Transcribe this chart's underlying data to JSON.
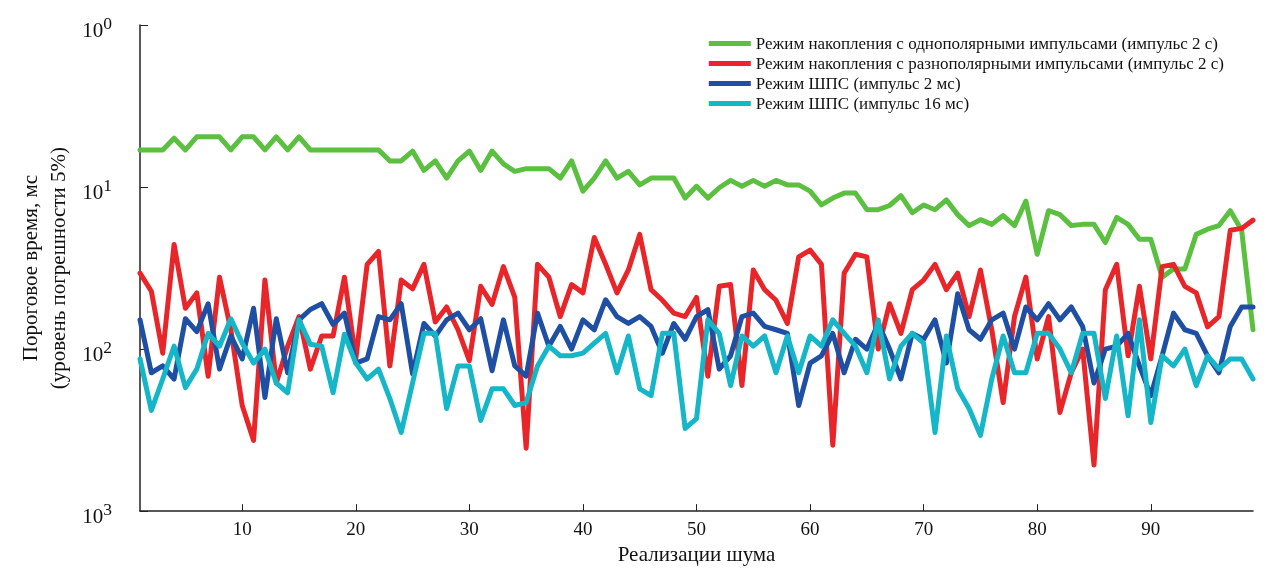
{
  "chart_data": {
    "type": "line",
    "xlabel": "Реализации шума",
    "ylabel": "Пороговое время, мс\n(уровень погрешности 5%)",
    "x": [
      1,
      2,
      3,
      4,
      5,
      6,
      7,
      8,
      9,
      10,
      11,
      12,
      13,
      14,
      15,
      16,
      17,
      18,
      19,
      20,
      21,
      22,
      23,
      24,
      25,
      26,
      27,
      28,
      29,
      30,
      31,
      32,
      33,
      34,
      35,
      36,
      37,
      38,
      39,
      40,
      41,
      42,
      43,
      44,
      45,
      46,
      47,
      48,
      49,
      50,
      51,
      52,
      53,
      54,
      55,
      56,
      57,
      58,
      59,
      60,
      61,
      62,
      63,
      64,
      65,
      66,
      67,
      68,
      69,
      70,
      71,
      72,
      73,
      74,
      75,
      76,
      77,
      78,
      79,
      80,
      81,
      82,
      83,
      84,
      85,
      86,
      87,
      88,
      89,
      90,
      91,
      92,
      93,
      94,
      95,
      96,
      97,
      98,
      99
    ],
    "xlim": [
      1,
      99
    ],
    "xticks": [
      10,
      20,
      30,
      40,
      50,
      60,
      70,
      80,
      90
    ],
    "log": "y",
    "ylim": [
      1000,
      1
    ],
    "yticks": [
      {
        "value": 1,
        "label": "10$^{0}$"
      },
      {
        "value": 10,
        "label": "10$^{1}$"
      },
      {
        "value": 100,
        "label": "10$^{2}$"
      },
      {
        "value": 1000,
        "label": "10$^{3}$"
      }
    ],
    "legend": "top right",
    "series": [
      {
        "name": "Режим накопления с однополярными импульсами (импульс 2 с)",
        "color": "#5bbf3f",
        "values": [
          5.9,
          5.9,
          5.9,
          5.0,
          5.9,
          4.9,
          4.9,
          4.9,
          5.9,
          4.9,
          4.9,
          5.9,
          4.9,
          5.9,
          4.9,
          5.9,
          5.9,
          5.9,
          5.9,
          5.9,
          5.9,
          5.9,
          6.9,
          6.9,
          6.0,
          7.9,
          6.9,
          8.8,
          6.9,
          6.0,
          7.9,
          6.0,
          7.2,
          8.0,
          7.7,
          7.7,
          7.7,
          8.8,
          6.9,
          10.6,
          8.8,
          6.9,
          8.8,
          8.0,
          9.7,
          8.8,
          8.8,
          8.8,
          11.7,
          9.9,
          11.7,
          10.1,
          9.1,
          9.9,
          9.1,
          9.9,
          9.1,
          9.7,
          9.7,
          10.6,
          12.9,
          11.7,
          10.9,
          10.9,
          13.8,
          13.8,
          13.0,
          11.3,
          14.4,
          12.9,
          13.8,
          12.0,
          14.8,
          17.3,
          15.9,
          17.0,
          15.0,
          17.3,
          12.2,
          26,
          14.0,
          14.8,
          17.3,
          17.0,
          17.0,
          22,
          15.4,
          17.0,
          21,
          21,
          36,
          32,
          32,
          19.6,
          18.2,
          17.3,
          14.0,
          18.5,
          76
        ]
      },
      {
        "name": "Режим накопления с разнополярными импульсами (импульс 2 с)",
        "color": "#e8262a",
        "values": [
          34,
          44,
          106,
          22.6,
          56,
          45,
          147,
          36,
          76,
          223,
          366,
          37.5,
          162,
          96,
          63,
          133,
          83,
          83,
          36,
          115,
          30,
          25,
          127,
          37.5,
          42.5,
          30,
          68,
          55,
          76,
          118,
          41,
          53,
          31,
          48,
          409,
          30,
          36,
          63,
          40,
          45,
          20.5,
          30,
          45,
          32.5,
          19.6,
          43,
          50,
          60,
          63,
          48,
          147,
          41,
          40,
          168,
          32.5,
          43,
          50,
          69.5,
          27,
          24.5,
          30,
          392,
          34,
          26,
          27,
          100,
          52.5,
          80,
          43,
          37.5,
          30,
          43,
          34,
          63,
          32.5,
          76,
          214,
          63,
          36,
          115,
          63,
          246,
          140,
          100,
          519,
          43,
          30,
          110,
          41,
          115,
          31,
          30,
          41,
          45,
          73,
          63,
          18.5,
          18,
          16
        ]
      },
      {
        "name": "Режим ШПС (импульс 2 мс)",
        "color": "#1f4fa3",
        "values": [
          66,
          140,
          127,
          153,
          65,
          78,
          52.5,
          133,
          83,
          115,
          56,
          199,
          65,
          140,
          66,
          57,
          52.5,
          70.5,
          60,
          122,
          115,
          63,
          66,
          52.5,
          142,
          69.5,
          83,
          66,
          60,
          76,
          65,
          136,
          66,
          127,
          147,
          60,
          96,
          72.5,
          100,
          66,
          76,
          49.6,
          63,
          69.5,
          63,
          72.5,
          106,
          69.5,
          87,
          63,
          57,
          133,
          110,
          63,
          60,
          72.5,
          76,
          80,
          223,
          122,
          110,
          80,
          140,
          87,
          100,
          69.5,
          100,
          153,
          80,
          87,
          66,
          122,
          45.5,
          76,
          87,
          66,
          60,
          100,
          55,
          66,
          52.5,
          66,
          55,
          72.5,
          162,
          100,
          96,
          80,
          127,
          194,
          110,
          60,
          76,
          80,
          110,
          140,
          72.5,
          55,
          55
        ]
      },
      {
        "name": "Режим ШПС (импульс 16 мс)",
        "color": "#14b6c8",
        "values": [
          115,
          239,
          153,
          96,
          173,
          133,
          80,
          96,
          65,
          92,
          122,
          100,
          162,
          186,
          66,
          93.5,
          96,
          186,
          81,
          122,
          153,
          133,
          202,
          327,
          162,
          80,
          80,
          233,
          127,
          127,
          276,
          176,
          176,
          223,
          214,
          127,
          96,
          110,
          110,
          106,
          92,
          80,
          140,
          83,
          176,
          194,
          80,
          80,
          309,
          269,
          66,
          80,
          168,
          83,
          96,
          83,
          140,
          83,
          140,
          83,
          96,
          66,
          80,
          96,
          140,
          66,
          153,
          96,
          80,
          92,
          327,
          83,
          176,
          233,
          341,
          153,
          83,
          140,
          140,
          80,
          80,
          100,
          140,
          80,
          80,
          202,
          83,
          258,
          66,
          284,
          110,
          127,
          100,
          168,
          110,
          133,
          115,
          115,
          153
        ]
      }
    ]
  }
}
